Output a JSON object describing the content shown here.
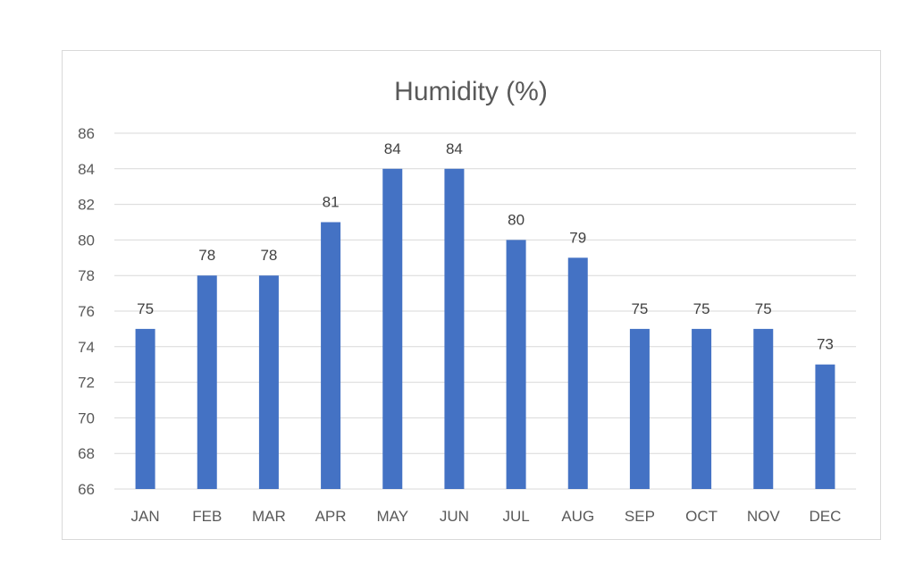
{
  "chart_data": {
    "type": "bar",
    "title": "Humidity (%)",
    "xlabel": "",
    "ylabel": "",
    "categories": [
      "JAN",
      "FEB",
      "MAR",
      "APR",
      "MAY",
      "JUN",
      "JUL",
      "AUG",
      "SEP",
      "OCT",
      "NOV",
      "DEC"
    ],
    "values": [
      75,
      78,
      78,
      81,
      84,
      84,
      80,
      79,
      75,
      75,
      75,
      73
    ],
    "ylim": [
      66,
      86
    ],
    "yticks": [
      66,
      68,
      70,
      72,
      74,
      76,
      78,
      80,
      82,
      84,
      86
    ],
    "grid": true,
    "legend": "none",
    "data_labels": true,
    "bar_color": "#4472c4"
  }
}
